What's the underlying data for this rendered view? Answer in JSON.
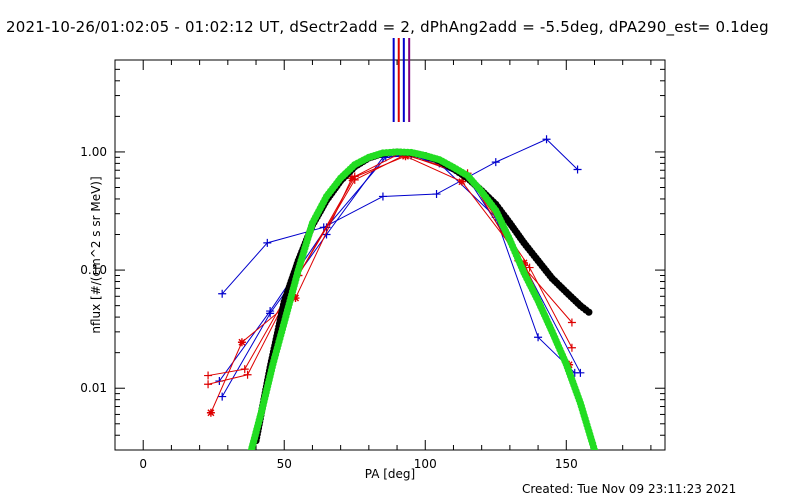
{
  "chart_data": {
    "type": "line",
    "title": "2021-10-26/01:02:05 - 01:02:12 UT, dSectr2add = 2, dPhAng2add = -5.5deg, dPA290_est=  0.1deg",
    "xlabel": "PA [deg]",
    "ylabel": "nflux [#/(cm^2 s sr MeV)]",
    "xlim": [
      -10,
      185
    ],
    "ylim": [
      0.003,
      6.0
    ],
    "yscale": "log",
    "xticks": [
      0,
      50,
      100,
      150
    ],
    "xtick_labels": [
      "0",
      "50",
      "100",
      "150"
    ],
    "yticks": [
      0.01,
      0.1,
      1.0
    ],
    "ytick_labels": [
      "0.01",
      "0.10",
      "1.00"
    ],
    "footer": "Created: Tue Nov 09 23:11:23 2021",
    "colors": {
      "blue": "#0000cc",
      "red": "#dd0000",
      "black": "#000000",
      "green": "#22dd22",
      "purple": "#800080"
    },
    "vertical_markers": [
      {
        "x": 88.8,
        "color": "#0000cc"
      },
      {
        "x": 90.6,
        "color": "#dd0000"
      },
      {
        "x": 92.4,
        "color": "#0000cc"
      },
      {
        "x": 94.3,
        "color": "#800080"
      }
    ],
    "series": [
      {
        "color": "#0000cc",
        "marker": "plus",
        "x": [
          28,
          44,
          64,
          85,
          104,
          125,
          143,
          154
        ],
        "y": [
          0.063,
          0.17,
          0.23,
          0.42,
          0.44,
          0.82,
          1.28,
          0.71
        ]
      },
      {
        "color": "#0000cc",
        "marker": "plus",
        "x": [
          28,
          45,
          65,
          85,
          95,
          105,
          125,
          140,
          153
        ],
        "y": [
          0.0085,
          0.043,
          0.2,
          0.9,
          0.93,
          0.8,
          0.28,
          0.027,
          0.0135
        ]
      },
      {
        "color": "#0000cc",
        "marker": "plus",
        "x": [
          27,
          45,
          65,
          86,
          95,
          115,
          135,
          155
        ],
        "y": [
          0.0115,
          0.045,
          0.23,
          0.9,
          0.96,
          0.6,
          0.11,
          0.0135
        ]
      },
      {
        "color": "#dd0000",
        "marker": "plus",
        "x": [
          23,
          36,
          55,
          75,
          91,
          115,
          133,
          152
        ],
        "y": [
          0.0128,
          0.0145,
          0.09,
          0.62,
          0.97,
          0.66,
          0.12,
          0.036
        ]
      },
      {
        "color": "#dd0000",
        "marker": "plus",
        "x": [
          23,
          37,
          55,
          75,
          93,
          115,
          137,
          152
        ],
        "y": [
          0.0108,
          0.013,
          0.09,
          0.58,
          0.95,
          0.63,
          0.105,
          0.022
        ]
      },
      {
        "color": "#dd0000",
        "marker": "star",
        "x": [
          24,
          35,
          54,
          74,
          93,
          113,
          135,
          151
        ],
        "y": [
          0.0062,
          0.0245,
          0.058,
          0.6,
          0.92,
          0.56,
          0.115,
          0.0158
        ]
      },
      {
        "color": "#000000",
        "marker": "thick-dots",
        "x": [
          40,
          45,
          50,
          55,
          60,
          65,
          70,
          75,
          80,
          85,
          90,
          95,
          100,
          105,
          110,
          115,
          120,
          125,
          130,
          135,
          140,
          145,
          150,
          155,
          158
        ],
        "y": [
          0.0036,
          0.015,
          0.054,
          0.12,
          0.24,
          0.39,
          0.57,
          0.75,
          0.89,
          0.97,
          1.0,
          0.98,
          0.93,
          0.84,
          0.72,
          0.6,
          0.47,
          0.36,
          0.25,
          0.17,
          0.12,
          0.085,
          0.065,
          0.05,
          0.044
        ]
      },
      {
        "color": "#22dd22",
        "marker": "thick-dots",
        "x": [
          38,
          42,
          46,
          50,
          55,
          60,
          65,
          70,
          75,
          80,
          85,
          90,
          95,
          100,
          105,
          110,
          115,
          120,
          125,
          130,
          135,
          140,
          145,
          150,
          155,
          160
        ],
        "y": [
          0.0028,
          0.0064,
          0.016,
          0.036,
          0.1,
          0.25,
          0.42,
          0.6,
          0.78,
          0.9,
          0.98,
          1.0,
          0.99,
          0.93,
          0.86,
          0.74,
          0.63,
          0.46,
          0.32,
          0.18,
          0.095,
          0.055,
          0.03,
          0.016,
          0.0075,
          0.003
        ]
      }
    ]
  }
}
